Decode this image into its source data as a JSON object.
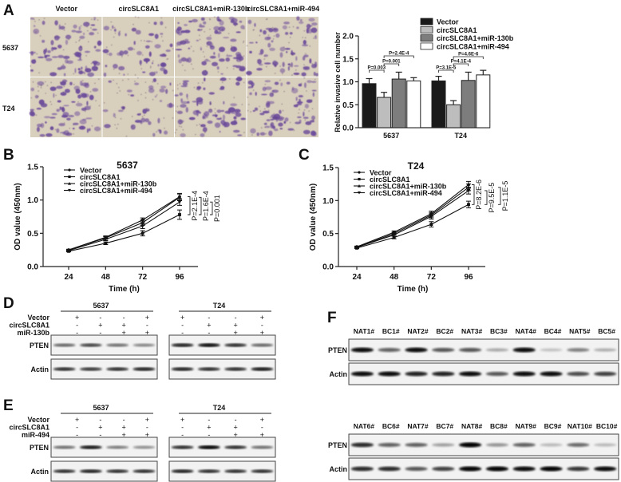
{
  "panels": {
    "A": {
      "label": "A",
      "columns": [
        "Vector",
        "circSLC8A1",
        "circSLC8A1+miR-130b",
        "circSLC8A1+miR-494"
      ],
      "rows": [
        "5637",
        "T24"
      ],
      "relative_cell_density": [
        [
          1.0,
          0.65,
          1.05,
          1.0
        ],
        [
          1.0,
          0.5,
          1.0,
          1.1
        ]
      ]
    },
    "B": {
      "label": "B"
    },
    "C": {
      "label": "C"
    },
    "D": {
      "label": "D",
      "cell_lines": [
        "5637",
        "T24"
      ],
      "conditions": [
        {
          "name": "Vector",
          "signs": [
            "+",
            "-",
            "-",
            "+"
          ]
        },
        {
          "name": "circSLC8A1",
          "signs": [
            "-",
            "+",
            "+",
            "-"
          ]
        },
        {
          "name": "miR-130b",
          "signs": [
            "-",
            "-",
            "+",
            "+"
          ]
        }
      ],
      "blots": [
        {
          "name": "PTEN",
          "intensity": [
            [
              0.55,
              0.7,
              0.5,
              0.4
            ],
            [
              0.85,
              0.95,
              0.8,
              0.55
            ]
          ]
        },
        {
          "name": "Actin",
          "intensity": [
            [
              0.8,
              0.75,
              0.8,
              0.85
            ],
            [
              0.85,
              0.8,
              0.8,
              0.9
            ]
          ]
        }
      ]
    },
    "E": {
      "label": "E",
      "cell_lines": [
        "5637",
        "T24"
      ],
      "conditions": [
        {
          "name": "Vector",
          "signs": [
            "+",
            "-",
            "-",
            "+"
          ]
        },
        {
          "name": "circSLC8A1",
          "signs": [
            "-",
            "+",
            "+",
            "-"
          ]
        },
        {
          "name": "miR-494",
          "signs": [
            "-",
            "-",
            "+",
            "+"
          ]
        }
      ],
      "blots": [
        {
          "name": "PTEN",
          "intensity": [
            [
              0.5,
              0.9,
              0.45,
              0.35
            ],
            [
              0.8,
              0.98,
              0.8,
              0.5
            ]
          ]
        },
        {
          "name": "Actin",
          "intensity": [
            [
              0.8,
              0.85,
              0.8,
              0.8
            ],
            [
              0.85,
              0.8,
              0.8,
              0.8
            ]
          ]
        }
      ]
    },
    "F": {
      "label": "F",
      "sets": [
        {
          "samples": [
            "NAT1#",
            "BC1#",
            "NAT2#",
            "BC2#",
            "NAT3#",
            "BC3#",
            "NAT4#",
            "BC4#",
            "NAT5#",
            "BC5#"
          ],
          "blots": [
            {
              "name": "PTEN",
              "intensity": [
                0.95,
                0.55,
                0.95,
                0.6,
                0.6,
                0.2,
                0.95,
                0.08,
                0.4,
                0.18
              ]
            },
            {
              "name": "Actin",
              "intensity": [
                0.95,
                0.95,
                0.85,
                0.85,
                0.95,
                0.6,
                0.95,
                0.95,
                0.65,
                0.7
              ]
            }
          ]
        },
        {
          "samples": [
            "NAT6#",
            "BC6#",
            "NAT7#",
            "BC7#",
            "NAT8#",
            "BC8#",
            "NAT9#",
            "BC9#",
            "NAT10#",
            "BC10#"
          ],
          "blots": [
            {
              "name": "PTEN",
              "intensity": [
                0.8,
                0.55,
                0.55,
                0.25,
                1.0,
                0.3,
                0.55,
                0.12,
                0.5,
                0.12
              ]
            },
            {
              "name": "Actin",
              "intensity": [
                0.8,
                0.8,
                0.6,
                0.7,
                0.98,
                0.98,
                0.95,
                0.98,
                0.75,
                0.95
              ]
            }
          ]
        }
      ]
    }
  },
  "chart_data": [
    {
      "type": "bar",
      "title": "",
      "xlabel": "",
      "ylabel": "Relative invasive cell number",
      "ylim": [
        0,
        2.0
      ],
      "yticks": [
        "0.0",
        "0.5",
        "1.0",
        "1.5",
        "2.0"
      ],
      "categories": [
        "5637",
        "T24"
      ],
      "legend_position": "top-right",
      "series": [
        {
          "name": "Vector",
          "color": "#1a1a1a",
          "values": [
            0.96,
            1.02
          ],
          "errors": [
            0.11,
            0.1
          ]
        },
        {
          "name": "circSLC8A1",
          "color": "#bdbdbd",
          "values": [
            0.66,
            0.5
          ],
          "errors": [
            0.11,
            0.09
          ]
        },
        {
          "name": "circSLC8A1+miR-130b",
          "color": "#7d7d7d",
          "values": [
            1.06,
            1.03
          ],
          "errors": [
            0.15,
            0.18
          ]
        },
        {
          "name": "circSLC8A1+miR-494",
          "color": "#ffffff",
          "values": [
            1.02,
            1.15
          ],
          "errors": [
            0.07,
            0.1
          ]
        }
      ],
      "annotations": [
        {
          "category": "5637",
          "from": 0,
          "to": 1,
          "text": "P=0.003"
        },
        {
          "category": "5637",
          "from": 1,
          "to": 2,
          "text": "P=0.001"
        },
        {
          "category": "5637",
          "from": 1,
          "to": 3,
          "text": "P=2.4E-4"
        },
        {
          "category": "T24",
          "from": 0,
          "to": 1,
          "text": "P=3.1E-5"
        },
        {
          "category": "T24",
          "from": 1,
          "to": 2,
          "text": "P=4.1E-4"
        },
        {
          "category": "T24",
          "from": 1,
          "to": 3,
          "text": "P=4.6E-6"
        }
      ]
    },
    {
      "type": "line",
      "title": "5637",
      "xlabel": "Time (h)",
      "ylabel": "OD value (450nm)",
      "x": [
        24,
        48,
        72,
        96
      ],
      "ylim": [
        0,
        1.5
      ],
      "yticks": [
        "0.0",
        "0.5",
        "1.0",
        "1.5"
      ],
      "legend_position": "top-left",
      "series": [
        {
          "name": "Vector",
          "marker": "circle",
          "values": [
            0.25,
            0.44,
            0.7,
            1.05
          ],
          "errors": [
            0.01,
            0.02,
            0.03,
            0.05
          ]
        },
        {
          "name": "circSLC8A1",
          "marker": "square",
          "values": [
            0.23,
            0.35,
            0.5,
            0.78
          ],
          "errors": [
            0.01,
            0.02,
            0.04,
            0.07
          ]
        },
        {
          "name": "circSLC8A1+miR-130b",
          "marker": "triangle-up",
          "values": [
            0.25,
            0.43,
            0.66,
            1.04
          ],
          "errors": [
            0.01,
            0.02,
            0.04,
            0.05
          ]
        },
        {
          "name": "circSLC8A1+miR-494",
          "marker": "triangle-down",
          "values": [
            0.24,
            0.41,
            0.61,
            0.97
          ],
          "errors": [
            0.01,
            0.02,
            0.04,
            0.05
          ]
        }
      ],
      "annotations": [
        {
          "from": 0,
          "to": 1,
          "text": "P=2.1E-4"
        },
        {
          "from": 2,
          "to": 1,
          "text": "P=1.6E-4"
        },
        {
          "from": 3,
          "to": 1,
          "text": "P=0.001"
        }
      ]
    },
    {
      "type": "line",
      "title": "T24",
      "xlabel": "Time (h)",
      "ylabel": "OD value (450nm)",
      "x": [
        24,
        48,
        72,
        96
      ],
      "ylim": [
        0,
        1.5
      ],
      "yticks": [
        "0.0",
        "0.5",
        "1.0",
        "1.5"
      ],
      "legend_position": "top-left",
      "series": [
        {
          "name": "Vector",
          "marker": "circle",
          "values": [
            0.3,
            0.52,
            0.8,
            1.24
          ],
          "errors": [
            0.01,
            0.02,
            0.04,
            0.05
          ]
        },
        {
          "name": "circSLC8A1",
          "marker": "square",
          "values": [
            0.28,
            0.44,
            0.64,
            0.94
          ],
          "errors": [
            0.01,
            0.02,
            0.04,
            0.05
          ]
        },
        {
          "name": "circSLC8A1+miR-130b",
          "marker": "triangle-up",
          "values": [
            0.29,
            0.5,
            0.78,
            1.2
          ],
          "errors": [
            0.01,
            0.02,
            0.04,
            0.05
          ]
        },
        {
          "name": "circSLC8A1+miR-494",
          "marker": "triangle-down",
          "values": [
            0.29,
            0.48,
            0.76,
            1.15
          ],
          "errors": [
            0.01,
            0.02,
            0.04,
            0.05
          ]
        }
      ],
      "annotations": [
        {
          "from": 0,
          "to": 1,
          "text": "P=8.2E-6"
        },
        {
          "from": 3,
          "to": 1,
          "text": "P=9.5E-5"
        },
        {
          "from": 2,
          "to": 1,
          "text": "P=1.1E-5"
        }
      ]
    }
  ]
}
